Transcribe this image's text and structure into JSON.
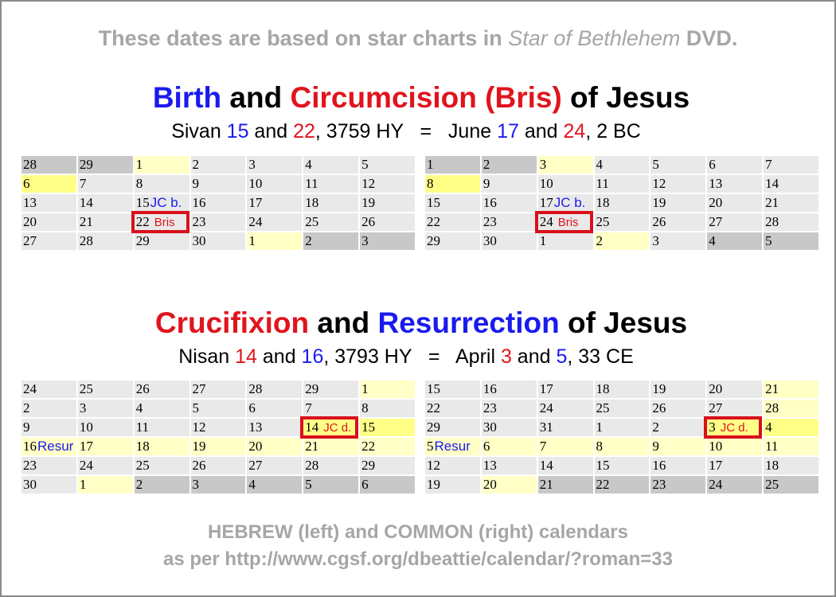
{
  "top_note": {
    "prefix": "These dates are based on star charts in ",
    "italic": "Star of Bethlehem",
    "suffix": " DVD."
  },
  "birth": {
    "heading": {
      "part1": "Birth",
      "part2": " and ",
      "part3": "Circumcision (Bris)",
      "part4": " of Jesus"
    },
    "sub": {
      "a": "Sivan ",
      "b": "15",
      "c": " and ",
      "d": "22",
      "e": ", 3759 HY   =   June ",
      "f": "17",
      "g": " and ",
      "h": "24",
      "i": ", 2 BC"
    }
  },
  "death": {
    "heading": {
      "part1": "Crucifixion",
      "part2": " and ",
      "part3": "Resurrection",
      "part4": " of Jesus"
    },
    "sub": {
      "a": "Nisan ",
      "b": "14",
      "c": " and ",
      "d": "16",
      "e": ", 3793 HY   =   April ",
      "f": "3",
      "g": " and ",
      "h": "5",
      "i": ", 33 CE"
    }
  },
  "calendars": {
    "hebrew_sivan": [
      [
        "28",
        "29",
        "1",
        "2",
        "3",
        "4",
        "5"
      ],
      [
        "6",
        "7",
        "8",
        "9",
        "10",
        "11",
        "12"
      ],
      [
        "13",
        "14",
        "15",
        "16",
        "17",
        "18",
        "19"
      ],
      [
        "20",
        "21",
        "22",
        "23",
        "24",
        "25",
        "26"
      ],
      [
        "27",
        "28",
        "29",
        "30",
        "1",
        "2",
        "3"
      ]
    ],
    "common_june": [
      [
        "1",
        "2",
        "3",
        "4",
        "5",
        "6",
        "7"
      ],
      [
        "8",
        "9",
        "10",
        "11",
        "12",
        "13",
        "14"
      ],
      [
        "15",
        "16",
        "17",
        "18",
        "19",
        "20",
        "21"
      ],
      [
        "22",
        "23",
        "24",
        "25",
        "26",
        "27",
        "28"
      ],
      [
        "29",
        "30",
        "1",
        "2",
        "3",
        "4",
        "5"
      ]
    ],
    "hebrew_nisan": [
      [
        "24",
        "25",
        "26",
        "27",
        "28",
        "29",
        "1"
      ],
      [
        "2",
        "3",
        "4",
        "5",
        "6",
        "7",
        "8"
      ],
      [
        "9",
        "10",
        "11",
        "12",
        "13",
        "14",
        "15"
      ],
      [
        "16",
        "17",
        "18",
        "19",
        "20",
        "21",
        "22"
      ],
      [
        "23",
        "24",
        "25",
        "26",
        "27",
        "28",
        "29"
      ],
      [
        "30",
        "1",
        "2",
        "3",
        "4",
        "5",
        "6"
      ]
    ],
    "common_april": [
      [
        "15",
        "16",
        "17",
        "18",
        "19",
        "20",
        "21"
      ],
      [
        "22",
        "23",
        "24",
        "25",
        "26",
        "27",
        "28"
      ],
      [
        "29",
        "30",
        "31",
        "1",
        "2",
        "3",
        "4"
      ],
      [
        "5",
        "6",
        "7",
        "8",
        "9",
        "10",
        "11"
      ],
      [
        "12",
        "13",
        "14",
        "15",
        "16",
        "17",
        "18"
      ],
      [
        "19",
        "20",
        "21",
        "22",
        "23",
        "24",
        "25"
      ]
    ]
  },
  "annotations": {
    "birth": "JC b.",
    "bris": "Bris",
    "death": "JC d.",
    "resur": "Resur"
  },
  "footer": {
    "line1": "HEBREW (left) and COMMON (right) calendars",
    "line2": "as per http://www.cgsf.org/dbeattie/calendar/?roman=33"
  }
}
